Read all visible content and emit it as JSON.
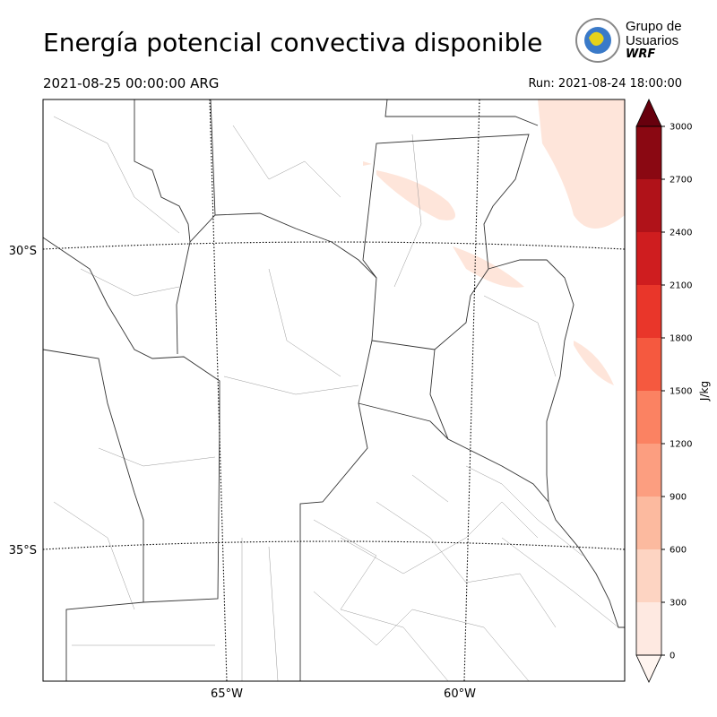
{
  "header": {
    "title": "Energía potencial convectiva disponible",
    "valid_time": "2021-08-25 00:00:00 ARG",
    "run": "Run: 2021-08-24 18:00:00"
  },
  "logo": {
    "line1": "Grupo de",
    "line2": "Usuarios",
    "line3": "WRF"
  },
  "map": {
    "lat_labels": [
      "30°S",
      "35°S"
    ],
    "lon_labels": [
      "65°W",
      "60°W"
    ]
  },
  "colorbar": {
    "label": "J/kg",
    "lim": [
      0,
      3000
    ],
    "ticks": [
      0,
      300,
      600,
      900,
      1200,
      1500,
      1800,
      2100,
      2400,
      2700,
      3000
    ],
    "colors": [
      "#fee9e1",
      "#fdd4c2",
      "#fcba9f",
      "#fc9e80",
      "#fb8262",
      "#f5593f",
      "#e9362a",
      "#cf1d1f",
      "#b01219",
      "#8a0812"
    ],
    "over_color": "#67000d",
    "under_color": "#fff5f0"
  }
}
